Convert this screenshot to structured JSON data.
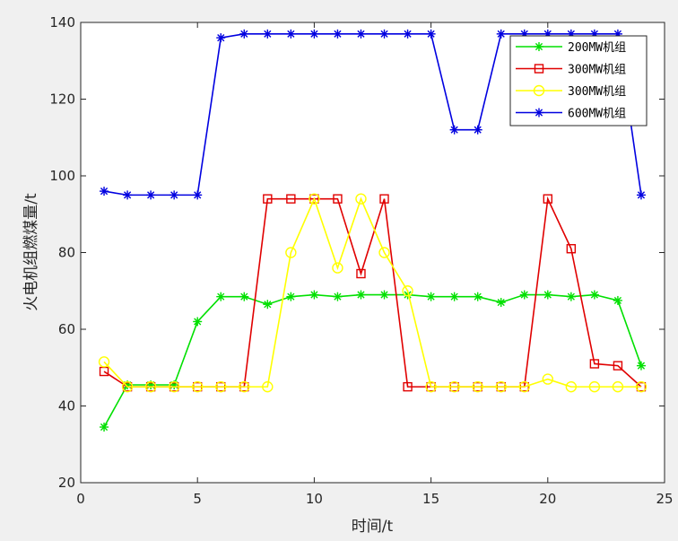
{
  "chart_data": {
    "type": "line",
    "title": "",
    "xlabel": "时间/t",
    "ylabel": "火电机组燃煤量/t",
    "xlim": [
      0,
      25
    ],
    "ylim": [
      20,
      140
    ],
    "xticks": [
      0,
      5,
      10,
      15,
      20,
      25
    ],
    "yticks": [
      20,
      40,
      60,
      80,
      100,
      120,
      140
    ],
    "grid": false,
    "legend_position": "top-right",
    "x": [
      1,
      2,
      3,
      4,
      5,
      6,
      7,
      8,
      9,
      10,
      11,
      12,
      13,
      14,
      15,
      16,
      17,
      18,
      19,
      20,
      21,
      22,
      23,
      24
    ],
    "series": [
      {
        "name": "200MW机组",
        "color": "#00e000",
        "marker": "asterisk",
        "values": [
          34.5,
          45.5,
          45.5,
          45.5,
          62,
          68.5,
          68.5,
          66.5,
          68.5,
          69,
          68.5,
          69,
          69,
          69,
          68.5,
          68.5,
          68.5,
          67,
          69,
          69,
          68.5,
          69,
          67.5,
          50.5
        ]
      },
      {
        "name": "300MW机组",
        "color": "#e00000",
        "marker": "square",
        "values": [
          49,
          45,
          45,
          45,
          45,
          45,
          45,
          94,
          94,
          94,
          94,
          74.5,
          94,
          45,
          45,
          45,
          45,
          45,
          45,
          94,
          81,
          51,
          50.5,
          45
        ]
      },
      {
        "name": "300MW机组",
        "color": "#ffff00",
        "marker": "circle",
        "values": [
          51.5,
          45,
          45,
          45,
          45,
          45,
          45,
          45,
          80,
          94,
          76,
          94,
          80,
          70,
          45,
          45,
          45,
          45,
          45,
          47,
          45,
          45,
          45,
          45
        ]
      },
      {
        "name": "600MW机组",
        "color": "#0000e0",
        "marker": "asterisk",
        "values": [
          96,
          95,
          95,
          95,
          95,
          136,
          137,
          137,
          137,
          137,
          137,
          137,
          137,
          137,
          137,
          112,
          112,
          137,
          137,
          137,
          137,
          137,
          137,
          95
        ]
      }
    ]
  }
}
